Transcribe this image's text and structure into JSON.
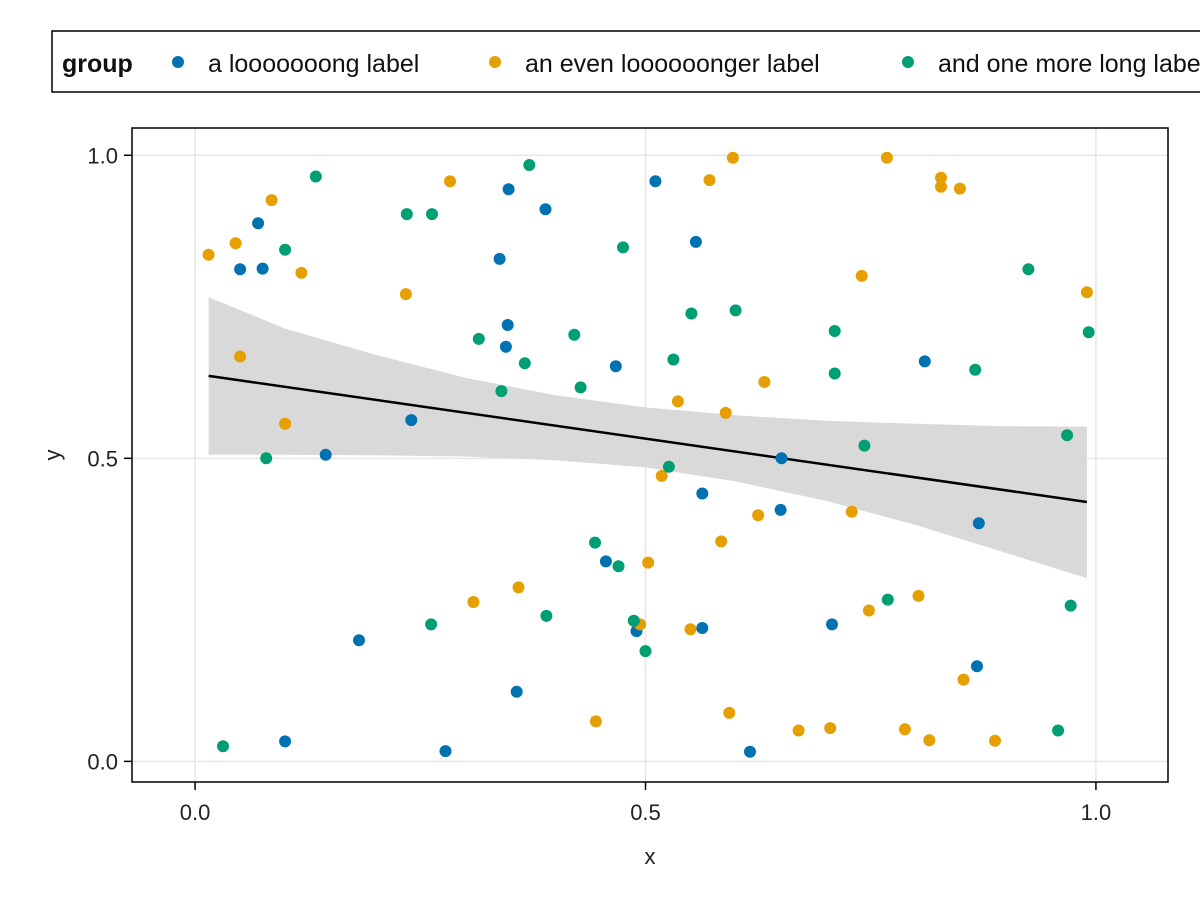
{
  "chart_data": {
    "type": "scatter",
    "xlabel": "x",
    "ylabel": "y",
    "xlim": [
      -0.07,
      1.08
    ],
    "ylim": [
      -0.034,
      1.045
    ],
    "xticks": [
      0.0,
      0.5,
      1.0
    ],
    "yticks": [
      0.0,
      0.5,
      1.0
    ],
    "xtick_labels": [
      "0.0",
      "0.5",
      "1.0"
    ],
    "ytick_labels": [
      "0.0",
      "0.5",
      "1.0"
    ],
    "grid": true,
    "legend": {
      "title": "group",
      "placement": "top",
      "entries": [
        "a looooooong label",
        "an even loooooonger label",
        "and one more long label"
      ]
    },
    "series": [
      {
        "name": "a looooooong label",
        "color": "#0072B2",
        "x": [
          0.05,
          0.075,
          0.07,
          0.1,
          0.145,
          0.182,
          0.24,
          0.278,
          0.338,
          0.345,
          0.347,
          0.348,
          0.357,
          0.389,
          0.456,
          0.467,
          0.49,
          0.511,
          0.556,
          0.563,
          0.563,
          0.616,
          0.651,
          0.65,
          0.707,
          0.81,
          0.868,
          0.87
        ],
        "y": [
          0.812,
          0.813,
          0.888,
          0.033,
          0.506,
          0.2,
          0.563,
          0.017,
          0.829,
          0.684,
          0.72,
          0.944,
          0.115,
          0.911,
          0.33,
          0.652,
          0.215,
          0.957,
          0.857,
          0.22,
          0.442,
          0.016,
          0.5,
          0.415,
          0.226,
          0.66,
          0.157,
          0.393
        ]
      },
      {
        "name": "an even loooooonger label",
        "color": "#E69F00",
        "x": [
          0.015,
          0.045,
          0.05,
          0.085,
          0.1,
          0.118,
          0.234,
          0.283,
          0.309,
          0.359,
          0.445,
          0.494,
          0.503,
          0.518,
          0.536,
          0.55,
          0.571,
          0.584,
          0.589,
          0.593,
          0.597,
          0.625,
          0.632,
          0.67,
          0.705,
          0.729,
          0.74,
          0.748,
          0.768,
          0.788,
          0.803,
          0.815,
          0.828,
          0.828,
          0.849,
          0.853,
          0.888,
          0.99
        ],
        "y": [
          0.836,
          0.855,
          0.668,
          0.926,
          0.557,
          0.806,
          0.771,
          0.957,
          0.263,
          0.287,
          0.066,
          0.226,
          0.328,
          0.471,
          0.594,
          0.218,
          0.959,
          0.363,
          0.575,
          0.08,
          0.996,
          0.406,
          0.626,
          0.051,
          0.055,
          0.412,
          0.801,
          0.249,
          0.996,
          0.053,
          0.273,
          0.035,
          0.963,
          0.948,
          0.945,
          0.135,
          0.034,
          0.774
        ]
      },
      {
        "name": "and one more long label",
        "color": "#009E73",
        "x": [
          0.031,
          0.079,
          0.1,
          0.134,
          0.235,
          0.262,
          0.263,
          0.315,
          0.34,
          0.371,
          0.366,
          0.421,
          0.39,
          0.428,
          0.444,
          0.47,
          0.487,
          0.475,
          0.5,
          0.526,
          0.531,
          0.551,
          0.6,
          0.71,
          0.71,
          0.743,
          0.769,
          0.925,
          0.866,
          0.958,
          0.972,
          0.968,
          0.992
        ],
        "y": [
          0.025,
          0.5,
          0.844,
          0.965,
          0.903,
          0.226,
          0.903,
          0.697,
          0.611,
          0.984,
          0.657,
          0.704,
          0.24,
          0.617,
          0.361,
          0.322,
          0.232,
          0.848,
          0.182,
          0.486,
          0.663,
          0.739,
          0.744,
          0.64,
          0.71,
          0.521,
          0.267,
          0.812,
          0.646,
          0.051,
          0.257,
          0.538,
          0.708
        ]
      }
    ],
    "trendline": {
      "color": "#000000",
      "x": [
        0.015,
        0.99
      ],
      "y": [
        0.636,
        0.428
      ]
    },
    "confidence_band": {
      "color": "#d9d9d9",
      "x": [
        0.015,
        0.1,
        0.2,
        0.3,
        0.4,
        0.5,
        0.6,
        0.7,
        0.8,
        0.9,
        0.99
      ],
      "upper": [
        0.766,
        0.714,
        0.671,
        0.633,
        0.604,
        0.584,
        0.571,
        0.562,
        0.557,
        0.553,
        0.552
      ],
      "lower": [
        0.506,
        0.506,
        0.505,
        0.503,
        0.497,
        0.485,
        0.462,
        0.43,
        0.39,
        0.344,
        0.302
      ]
    }
  }
}
